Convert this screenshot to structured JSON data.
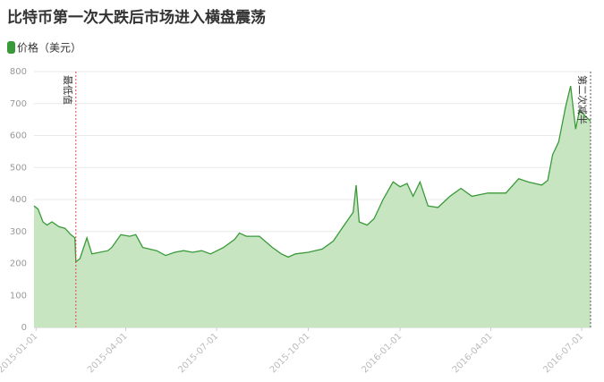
{
  "chart_data": {
    "type": "area",
    "title": "比特币第一次大跌后市场进入横盘震荡",
    "series": [
      {
        "name": "价格（美元）",
        "color": "#3a9a3a",
        "x": [
          "2014-12-30",
          "2015-01-03",
          "2015-01-08",
          "2015-01-12",
          "2015-01-17",
          "2015-01-24",
          "2015-01-30",
          "2015-02-05",
          "2015-02-09",
          "2015-02-10",
          "2015-02-14",
          "2015-02-21",
          "2015-02-26",
          "2015-03-14",
          "2015-03-18",
          "2015-03-27",
          "2015-04-05",
          "2015-04-11",
          "2015-04-18",
          "2015-05-02",
          "2015-05-11",
          "2015-05-20",
          "2015-05-29",
          "2015-06-07",
          "2015-06-16",
          "2015-06-25",
          "2015-07-08",
          "2015-07-19",
          "2015-07-24",
          "2015-07-31",
          "2015-08-13",
          "2015-08-26",
          "2015-09-04",
          "2015-09-11",
          "2015-09-18",
          "2015-10-01",
          "2015-10-15",
          "2015-10-26",
          "2015-11-06",
          "2015-11-15",
          "2015-11-18",
          "2015-11-21",
          "2015-11-29",
          "2015-12-06",
          "2015-12-15",
          "2015-12-25",
          "2016-01-01",
          "2016-01-08",
          "2016-01-14",
          "2016-01-21",
          "2016-01-29",
          "2016-02-08",
          "2016-02-20",
          "2016-03-02",
          "2016-03-13",
          "2016-03-29",
          "2016-04-16",
          "2016-04-29",
          "2016-05-08",
          "2016-05-22",
          "2016-05-28",
          "2016-06-02",
          "2016-06-08",
          "2016-06-15",
          "2016-06-20",
          "2016-06-25",
          "2016-06-29",
          "2016-07-05",
          "2016-07-10"
        ],
        "values": [
          380,
          370,
          330,
          320,
          330,
          315,
          310,
          290,
          280,
          205,
          215,
          280,
          230,
          240,
          250,
          290,
          285,
          290,
          250,
          240,
          225,
          235,
          240,
          235,
          240,
          230,
          250,
          275,
          295,
          285,
          285,
          250,
          230,
          220,
          230,
          235,
          245,
          270,
          320,
          360,
          445,
          330,
          320,
          340,
          400,
          455,
          440,
          450,
          410,
          455,
          380,
          375,
          410,
          435,
          410,
          420,
          420,
          465,
          455,
          445,
          460,
          540,
          580,
          690,
          755,
          620,
          680,
          660,
          645
        ]
      }
    ],
    "xlim": [
      "2014-12-30",
      "2016-07-10"
    ],
    "xticks": [
      "2015-01-01",
      "2015-04-01",
      "2015-07-01",
      "2015-10-01",
      "2016-01-01",
      "2016-04-01",
      "2016-07-01"
    ],
    "ylim": [
      0,
      800
    ],
    "yticks": [
      0,
      100,
      200,
      300,
      400,
      500,
      600,
      700,
      800
    ],
    "grid": true,
    "fill_color": "#c7e5c0",
    "mark_lines": [
      {
        "label": "最低值",
        "x": "2015-02-10",
        "color": "#e0474c"
      },
      {
        "label": "第二次减半",
        "x": "2016-07-10",
        "color": "#555555"
      }
    ]
  }
}
